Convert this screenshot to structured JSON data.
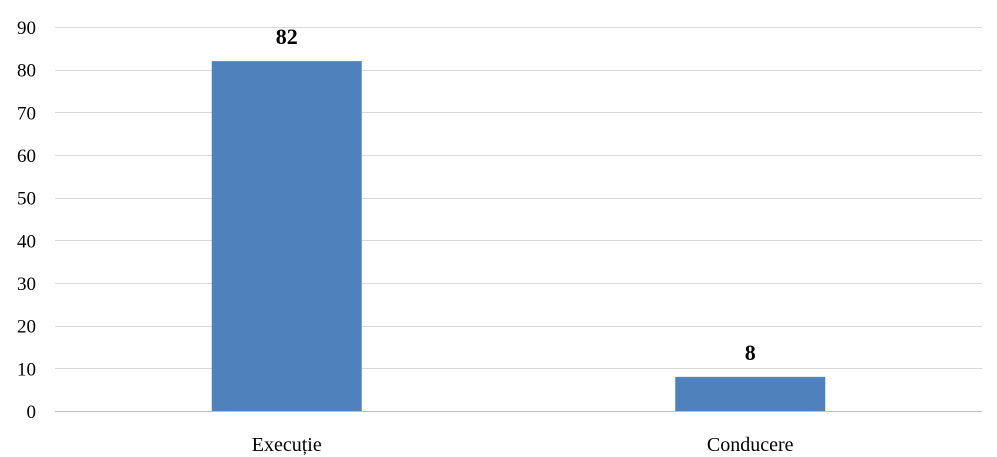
{
  "chart_data": {
    "type": "bar",
    "title": "",
    "xlabel": "",
    "ylabel": "",
    "categories": [
      "Execuție",
      "Conducere"
    ],
    "values": [
      82,
      8
    ],
    "ylim": [
      0,
      90
    ],
    "yticks": [
      0,
      10,
      20,
      30,
      40,
      50,
      60,
      70,
      80,
      90
    ],
    "grid": true,
    "legend": "none",
    "data_labels": [
      "82",
      "8"
    ],
    "bar_color": "#4f81bd",
    "grid_color": "#d9d9d9"
  }
}
